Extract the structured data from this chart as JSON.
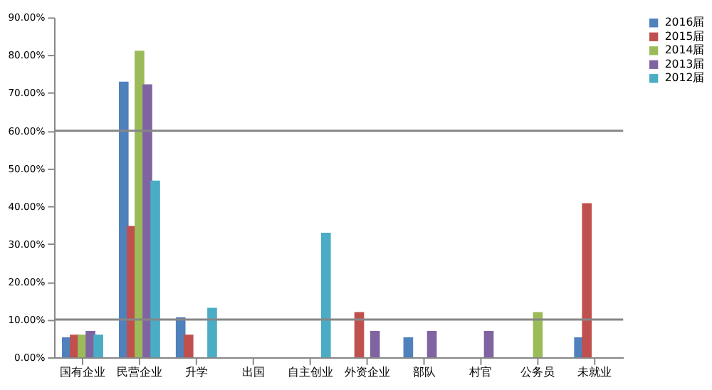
{
  "chart_data": {
    "type": "bar",
    "categories": [
      "国有企业",
      "民营企业",
      "升学",
      "出国",
      "自主创业",
      "外资企业",
      "部队",
      "村官",
      "公务员",
      "未就业"
    ],
    "series": [
      {
        "name": "2016届",
        "color": "#4f81bd",
        "values": [
          5.3,
          73,
          10.6,
          null,
          null,
          null,
          5.3,
          null,
          null,
          5.3
        ]
      },
      {
        "name": "2015届",
        "color": "#c0504d",
        "values": [
          6,
          34.8,
          6,
          null,
          null,
          12,
          null,
          null,
          null,
          40.8
        ]
      },
      {
        "name": "2014届",
        "color": "#9bbb59",
        "values": [
          6,
          81.2,
          null,
          null,
          null,
          null,
          null,
          null,
          12,
          null
        ]
      },
      {
        "name": "2013届",
        "color": "#8064a2",
        "values": [
          7,
          72.3,
          null,
          null,
          null,
          7,
          7,
          7,
          null,
          null
        ]
      },
      {
        "name": "2012届",
        "color": "#4bacc6",
        "values": [
          6,
          46.8,
          13.1,
          null,
          33,
          null,
          null,
          null,
          null,
          null
        ]
      }
    ],
    "ylim": [
      0,
      90
    ],
    "yticks": [
      {
        "value": 0,
        "label": "0.00%"
      },
      {
        "value": 10,
        "label": "10.00%"
      },
      {
        "value": 20,
        "label": "20.00%"
      },
      {
        "value": 30,
        "label": "30.00%"
      },
      {
        "value": 40,
        "label": "40.00%"
      },
      {
        "value": 50,
        "label": "50.00%"
      },
      {
        "value": 60,
        "label": "60.00%"
      },
      {
        "value": 70,
        "label": "70.00%"
      },
      {
        "value": 80,
        "label": "80.00%"
      },
      {
        "value": 90,
        "label": "90.00%"
      }
    ],
    "ref_lines": [
      {
        "axis": "y",
        "value": 10,
        "color": "#868686"
      },
      {
        "axis": "y",
        "value": 60,
        "color": "#868686"
      }
    ],
    "grid": false,
    "legend": "right"
  }
}
